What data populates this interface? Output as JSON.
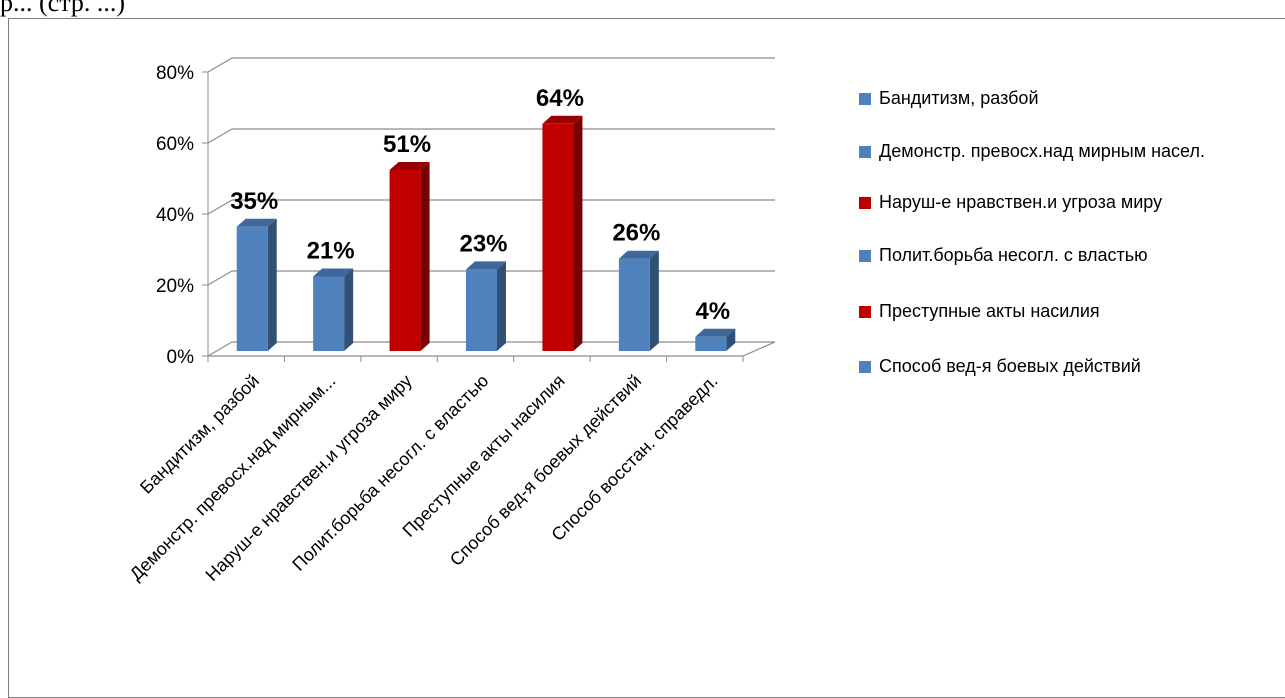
{
  "page": {
    "caption": "р... (стр. ...)"
  },
  "chart_data": {
    "type": "bar",
    "categories": [
      "Бандитизм, разбой",
      "Демонстр. превосх.над мирным насел.",
      "Наруш-е нравствен.и угроза миру",
      "Полит.борьба несогл. с властью",
      "Преступные акты насилия",
      "Способ вед-я боевых действий",
      "Способ восстан. справедл."
    ],
    "category_tick_labels": [
      "Бандитизм, разбой",
      "Демонстр. превосх.над мирным...",
      "Наруш-е нравствен.и угроза миру",
      "Полит.борьба несогл. с властью",
      "Преступные акты насилия",
      "Способ вед-я боевых действий",
      "Способ восстан. справедл."
    ],
    "values": [
      0.35,
      0.21,
      0.51,
      0.23,
      0.64,
      0.26,
      0.04
    ],
    "data_labels": [
      "35%",
      "21%",
      "51%",
      "23%",
      "64%",
      "26%",
      "4%"
    ],
    "bar_colors": [
      "#4F81BD",
      "#4F81BD",
      "#C00000",
      "#4F81BD",
      "#C00000",
      "#4F81BD",
      "#4F81BD"
    ],
    "ylim": [
      0,
      0.8
    ],
    "y_ticks": [
      "0%",
      "20%",
      "40%",
      "60%",
      "80%"
    ],
    "grid": true,
    "legend_position": "right",
    "legend": [
      {
        "label": "Бандитизм, разбой",
        "color": "#4F81BD"
      },
      {
        "label": "Демонстр. превосх.над мирным насел.",
        "color": "#4F81BD"
      },
      {
        "label": "Наруш-е нравствен.и угроза миру",
        "color": "#C00000"
      },
      {
        "label": "Полит.борьба несогл. с властью",
        "color": "#4F81BD"
      },
      {
        "label": "Преступные акты насилия",
        "color": "#C00000"
      },
      {
        "label": "Способ вед-я боевых действий",
        "color": "#4F81BD"
      }
    ],
    "title": "",
    "xlabel": "",
    "ylabel": ""
  }
}
